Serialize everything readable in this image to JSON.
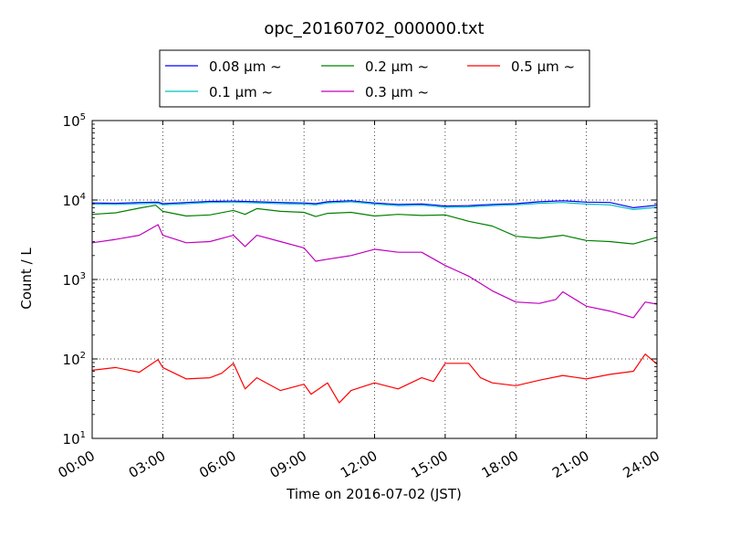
{
  "chart_data": {
    "type": "line",
    "title": "opc_20160702_000000.txt",
    "xlabel": "Time on 2016-07-02 (JST)",
    "ylabel": "Count / L",
    "x_unit": "hours",
    "xlim": [
      0,
      24
    ],
    "ylim": [
      10,
      100000
    ],
    "yscale": "log",
    "grid": true,
    "legend_position": "top",
    "x_ticks": [
      {
        "value": 0,
        "label": "00:00"
      },
      {
        "value": 3,
        "label": "03:00"
      },
      {
        "value": 6,
        "label": "06:00"
      },
      {
        "value": 9,
        "label": "09:00"
      },
      {
        "value": 12,
        "label": "12:00"
      },
      {
        "value": 15,
        "label": "15:00"
      },
      {
        "value": 18,
        "label": "18:00"
      },
      {
        "value": 21,
        "label": "21:00"
      },
      {
        "value": 24,
        "label": "24:00"
      }
    ],
    "y_ticks": [
      {
        "value": 10,
        "base": "10",
        "exp": "1"
      },
      {
        "value": 100,
        "base": "10",
        "exp": "2"
      },
      {
        "value": 1000,
        "base": "10",
        "exp": "3"
      },
      {
        "value": 10000,
        "base": "10",
        "exp": "4"
      },
      {
        "value": 100000,
        "base": "10",
        "exp": "5"
      }
    ],
    "series": [
      {
        "name": "0.08 μm ~",
        "color": "#0000ff",
        "x": [
          0,
          1,
          2,
          2.8,
          3,
          4,
          5,
          6,
          7,
          8,
          9,
          9.5,
          10,
          11,
          12,
          13,
          14,
          14.5,
          15,
          16,
          17,
          18,
          19,
          20,
          20.5,
          21,
          22,
          23,
          24
        ],
        "y": [
          9200,
          9100,
          9300,
          9400,
          9000,
          9300,
          9600,
          9700,
          9500,
          9300,
          9200,
          9000,
          9500,
          9800,
          9200,
          8800,
          8900,
          8700,
          8400,
          8500,
          8800,
          9000,
          9500,
          9800,
          9600,
          9400,
          9300,
          8000,
          8600
        ]
      },
      {
        "name": "0.1 μm ~",
        "color": "#00bfbf",
        "x": [
          0,
          1,
          2,
          2.8,
          3,
          4,
          5,
          6,
          7,
          8,
          9,
          9.5,
          10,
          11,
          12,
          13,
          14,
          14.5,
          15,
          16,
          17,
          18,
          19,
          20,
          20.5,
          21,
          22,
          23,
          24
        ],
        "y": [
          8900,
          8800,
          9000,
          9100,
          8700,
          9000,
          9300,
          9400,
          9200,
          9000,
          8900,
          8700,
          9200,
          9500,
          8900,
          8500,
          8600,
          8400,
          8100,
          8200,
          8500,
          8700,
          9100,
          9300,
          9100,
          8900,
          8700,
          7600,
          8100
        ]
      },
      {
        "name": "0.2 μm ~",
        "color": "#008000",
        "x": [
          0,
          1,
          2,
          2.7,
          3,
          4,
          5,
          6,
          6.5,
          7,
          8,
          9,
          9.5,
          10,
          11,
          12,
          13,
          14,
          15,
          16,
          17,
          18,
          19,
          20,
          21,
          22,
          23,
          24
        ],
        "y": [
          6600,
          6900,
          7900,
          8600,
          7200,
          6300,
          6500,
          7400,
          6600,
          7800,
          7200,
          7000,
          6200,
          6800,
          7000,
          6300,
          6600,
          6400,
          6500,
          5400,
          4700,
          3500,
          3300,
          3600,
          3100,
          3000,
          2800,
          3400
        ]
      },
      {
        "name": "0.3 μm ~",
        "color": "#bf00bf",
        "x": [
          0,
          1,
          2,
          2.8,
          3,
          4,
          5,
          6,
          6.5,
          7,
          8,
          9,
          9.5,
          10,
          11,
          12,
          13,
          14,
          15,
          16,
          17,
          18,
          19,
          19.7,
          20,
          21,
          22,
          23,
          23.5,
          24
        ],
        "y": [
          2900,
          3200,
          3600,
          4900,
          3600,
          2900,
          3000,
          3600,
          2600,
          3600,
          3000,
          2500,
          1700,
          1800,
          2000,
          2400,
          2200,
          2200,
          1500,
          1100,
          720,
          520,
          500,
          560,
          700,
          460,
          400,
          330,
          520,
          490
        ]
      },
      {
        "name": "0.5 μm ~",
        "color": "#ff0000",
        "x": [
          0,
          1,
          2,
          2.8,
          3,
          4,
          5,
          5.5,
          6,
          6.5,
          7,
          8,
          9,
          9.3,
          10,
          10.5,
          11,
          12,
          13,
          14,
          14.5,
          15,
          16,
          16.5,
          17,
          18,
          19,
          20,
          21,
          22,
          23,
          23.5,
          24
        ],
        "y": [
          72,
          78,
          68,
          98,
          78,
          56,
          58,
          66,
          88,
          42,
          58,
          40,
          48,
          36,
          50,
          28,
          40,
          50,
          42,
          58,
          52,
          88,
          88,
          58,
          50,
          46,
          54,
          62,
          56,
          64,
          70,
          115,
          86
        ]
      }
    ]
  }
}
